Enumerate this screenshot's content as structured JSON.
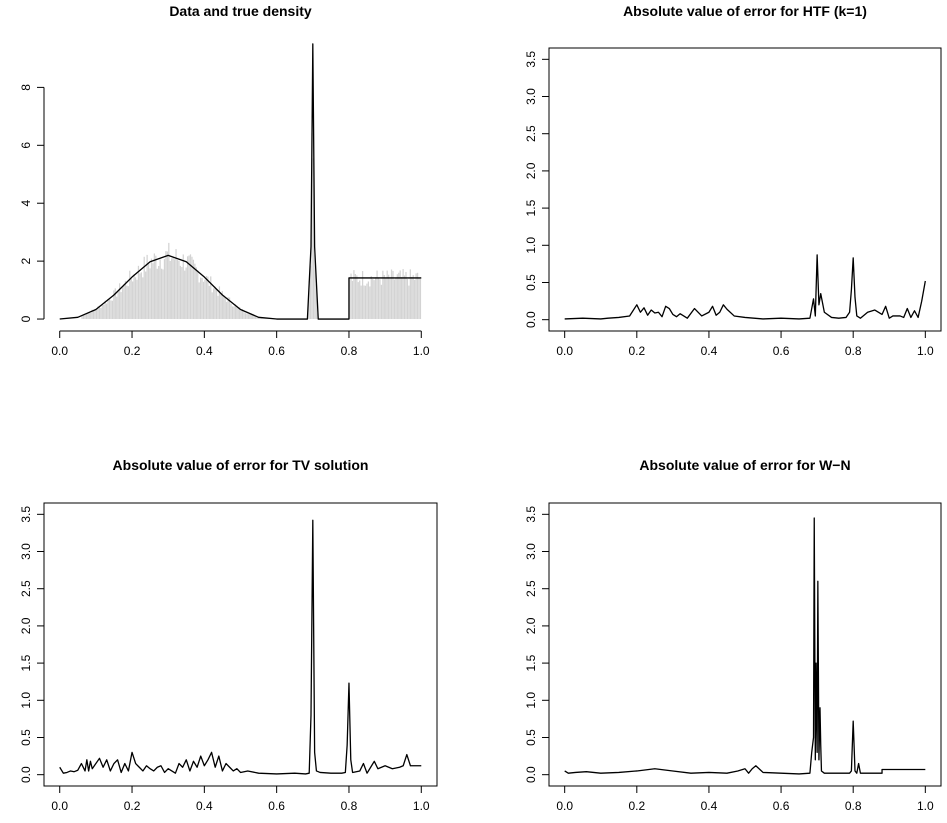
{
  "chart_data": [
    {
      "type": "line",
      "title": "Data and true density",
      "xlim": [
        0,
        1
      ],
      "ylim": [
        0,
        9.5
      ],
      "x_ticks": [
        0,
        0.2,
        0.4,
        0.6,
        0.8,
        1
      ],
      "x_tick_labels": [
        "0.0",
        "0.2",
        "0.4",
        "0.6",
        "0.8",
        "1.0"
      ],
      "y_ticks": [
        0,
        2,
        4,
        6,
        8
      ],
      "y_tick_labels": [
        "0",
        "2",
        "4",
        "6",
        "8"
      ],
      "box": false,
      "histogram_color": "#d3d3d3",
      "line_color": "#000000",
      "histogram": {
        "bin_width": 0.004,
        "ranges": [
          [
            0.06,
            0.58
          ],
          [
            0.68,
            0.72
          ],
          [
            0.8,
            1.0
          ]
        ]
      },
      "series": [
        {
          "x": [
            0,
            0.05,
            0.1,
            0.15,
            0.2,
            0.25,
            0.3,
            0.35,
            0.4,
            0.45,
            0.5,
            0.55,
            0.6,
            0.65,
            0.685,
            0.695,
            0.7,
            0.705,
            0.715,
            0.79,
            0.8,
            0.8,
            1.0
          ],
          "y": [
            0.0,
            0.06,
            0.33,
            0.83,
            1.45,
            1.98,
            2.2,
            1.98,
            1.45,
            0.83,
            0.33,
            0.06,
            0.0,
            0.0,
            0.0,
            2.5,
            9.5,
            2.5,
            0.0,
            0.0,
            0.0,
            1.42,
            1.42
          ]
        }
      ]
    },
    {
      "type": "line",
      "title": "Absolute value of error for HTF (k=1)",
      "xlim": [
        0,
        1
      ],
      "ylim": [
        0,
        3.5
      ],
      "x_ticks": [
        0,
        0.2,
        0.4,
        0.6,
        0.8,
        1
      ],
      "x_tick_labels": [
        "0.0",
        "0.2",
        "0.4",
        "0.6",
        "0.8",
        "1.0"
      ],
      "y_ticks": [
        0,
        0.5,
        1,
        1.5,
        2,
        2.5,
        3,
        3.5
      ],
      "y_tick_labels": [
        "0.0",
        "0.5",
        "1.0",
        "1.5",
        "2.0",
        "2.5",
        "3.0",
        "3.5"
      ],
      "box": true,
      "series": [
        {
          "x": [
            0,
            0.05,
            0.1,
            0.12,
            0.15,
            0.18,
            0.2,
            0.21,
            0.22,
            0.23,
            0.24,
            0.25,
            0.26,
            0.27,
            0.28,
            0.29,
            0.3,
            0.31,
            0.32,
            0.34,
            0.36,
            0.38,
            0.4,
            0.41,
            0.42,
            0.43,
            0.44,
            0.45,
            0.47,
            0.5,
            0.55,
            0.6,
            0.65,
            0.68,
            0.69,
            0.695,
            0.7,
            0.705,
            0.71,
            0.72,
            0.74,
            0.76,
            0.78,
            0.79,
            0.795,
            0.8,
            0.805,
            0.81,
            0.82,
            0.84,
            0.86,
            0.88,
            0.89,
            0.9,
            0.91,
            0.92,
            0.93,
            0.94,
            0.95,
            0.96,
            0.97,
            0.98,
            0.99,
            1.0
          ],
          "y": [
            0.01,
            0.02,
            0.01,
            0.02,
            0.03,
            0.05,
            0.2,
            0.1,
            0.16,
            0.06,
            0.13,
            0.09,
            0.1,
            0.04,
            0.18,
            0.15,
            0.07,
            0.04,
            0.08,
            0.02,
            0.15,
            0.05,
            0.1,
            0.18,
            0.06,
            0.1,
            0.2,
            0.14,
            0.05,
            0.03,
            0.01,
            0.02,
            0.01,
            0.02,
            0.28,
            0.05,
            0.87,
            0.2,
            0.35,
            0.1,
            0.03,
            0.02,
            0.03,
            0.1,
            0.4,
            0.83,
            0.3,
            0.05,
            0.02,
            0.1,
            0.13,
            0.07,
            0.18,
            0.02,
            0.05,
            0.05,
            0.05,
            0.03,
            0.15,
            0.03,
            0.12,
            0.03,
            0.25,
            0.52
          ]
        }
      ]
    },
    {
      "type": "line",
      "title": "Absolute value of error for TV solution",
      "xlim": [
        0,
        1
      ],
      "ylim": [
        0,
        3.5
      ],
      "x_ticks": [
        0,
        0.2,
        0.4,
        0.6,
        0.8,
        1
      ],
      "x_tick_labels": [
        "0.0",
        "0.2",
        "0.4",
        "0.6",
        "0.8",
        "1.0"
      ],
      "y_ticks": [
        0,
        0.5,
        1,
        1.5,
        2,
        2.5,
        3,
        3.5
      ],
      "y_tick_labels": [
        "0.0",
        "0.5",
        "1.0",
        "1.5",
        "2.0",
        "2.5",
        "3.0",
        "3.5"
      ],
      "box": true,
      "series": [
        {
          "x": [
            0,
            0.01,
            0.02,
            0.03,
            0.04,
            0.05,
            0.06,
            0.07,
            0.075,
            0.08,
            0.085,
            0.09,
            0.1,
            0.11,
            0.12,
            0.13,
            0.14,
            0.15,
            0.16,
            0.17,
            0.18,
            0.19,
            0.2,
            0.21,
            0.22,
            0.23,
            0.24,
            0.25,
            0.26,
            0.27,
            0.28,
            0.29,
            0.3,
            0.31,
            0.32,
            0.33,
            0.34,
            0.35,
            0.36,
            0.37,
            0.38,
            0.39,
            0.4,
            0.41,
            0.42,
            0.43,
            0.44,
            0.45,
            0.46,
            0.47,
            0.48,
            0.49,
            0.5,
            0.52,
            0.55,
            0.6,
            0.65,
            0.68,
            0.69,
            0.695,
            0.7,
            0.705,
            0.71,
            0.72,
            0.75,
            0.78,
            0.79,
            0.795,
            0.8,
            0.805,
            0.81,
            0.83,
            0.84,
            0.85,
            0.86,
            0.87,
            0.88,
            0.89,
            0.9,
            0.92,
            0.94,
            0.95,
            0.96,
            0.97,
            0.98,
            1.0
          ],
          "y": [
            0.1,
            0.02,
            0.03,
            0.05,
            0.04,
            0.06,
            0.15,
            0.05,
            0.2,
            0.05,
            0.18,
            0.08,
            0.15,
            0.22,
            0.1,
            0.2,
            0.05,
            0.15,
            0.2,
            0.03,
            0.15,
            0.05,
            0.3,
            0.15,
            0.1,
            0.05,
            0.12,
            0.08,
            0.05,
            0.1,
            0.12,
            0.03,
            0.08,
            0.05,
            0.02,
            0.15,
            0.1,
            0.2,
            0.05,
            0.18,
            0.1,
            0.25,
            0.12,
            0.2,
            0.3,
            0.1,
            0.25,
            0.05,
            0.15,
            0.1,
            0.05,
            0.08,
            0.03,
            0.05,
            0.02,
            0.01,
            0.02,
            0.01,
            0.02,
            0.8,
            3.42,
            0.3,
            0.05,
            0.03,
            0.02,
            0.02,
            0.03,
            0.4,
            1.23,
            0.2,
            0.03,
            0.05,
            0.15,
            0.02,
            0.1,
            0.18,
            0.08,
            0.1,
            0.12,
            0.08,
            0.1,
            0.12,
            0.27,
            0.12,
            0.12,
            0.12
          ]
        }
      ]
    },
    {
      "type": "line",
      "title": "Absolute value of error for W−N",
      "xlim": [
        0,
        1
      ],
      "ylim": [
        0,
        3.5
      ],
      "x_ticks": [
        0,
        0.2,
        0.4,
        0.6,
        0.8,
        1
      ],
      "x_tick_labels": [
        "0.0",
        "0.2",
        "0.4",
        "0.6",
        "0.8",
        "1.0"
      ],
      "y_ticks": [
        0,
        0.5,
        1,
        1.5,
        2,
        2.5,
        3,
        3.5
      ],
      "y_tick_labels": [
        "0.0",
        "0.5",
        "1.0",
        "1.5",
        "2.0",
        "2.5",
        "3.0",
        "3.5"
      ],
      "box": true,
      "series": [
        {
          "x": [
            0,
            0.01,
            0.03,
            0.06,
            0.1,
            0.15,
            0.2,
            0.25,
            0.3,
            0.35,
            0.4,
            0.45,
            0.48,
            0.5,
            0.51,
            0.52,
            0.53,
            0.55,
            0.6,
            0.65,
            0.68,
            0.685,
            0.69,
            0.692,
            0.695,
            0.697,
            0.7,
            0.702,
            0.705,
            0.708,
            0.71,
            0.712,
            0.72,
            0.75,
            0.78,
            0.79,
            0.795,
            0.8,
            0.805,
            0.81,
            0.815,
            0.82,
            0.84,
            0.86,
            0.88,
            0.88,
            1.0
          ],
          "y": [
            0.05,
            0.02,
            0.03,
            0.04,
            0.02,
            0.03,
            0.05,
            0.08,
            0.05,
            0.02,
            0.03,
            0.02,
            0.05,
            0.08,
            0.02,
            0.08,
            0.12,
            0.03,
            0.02,
            0.01,
            0.02,
            0.3,
            0.5,
            3.45,
            0.2,
            1.5,
            0.3,
            2.6,
            0.2,
            0.9,
            0.4,
            0.05,
            0.02,
            0.02,
            0.02,
            0.02,
            0.05,
            0.72,
            0.05,
            0.02,
            0.15,
            0.02,
            0.02,
            0.02,
            0.02,
            0.07,
            0.07
          ]
        }
      ]
    }
  ]
}
